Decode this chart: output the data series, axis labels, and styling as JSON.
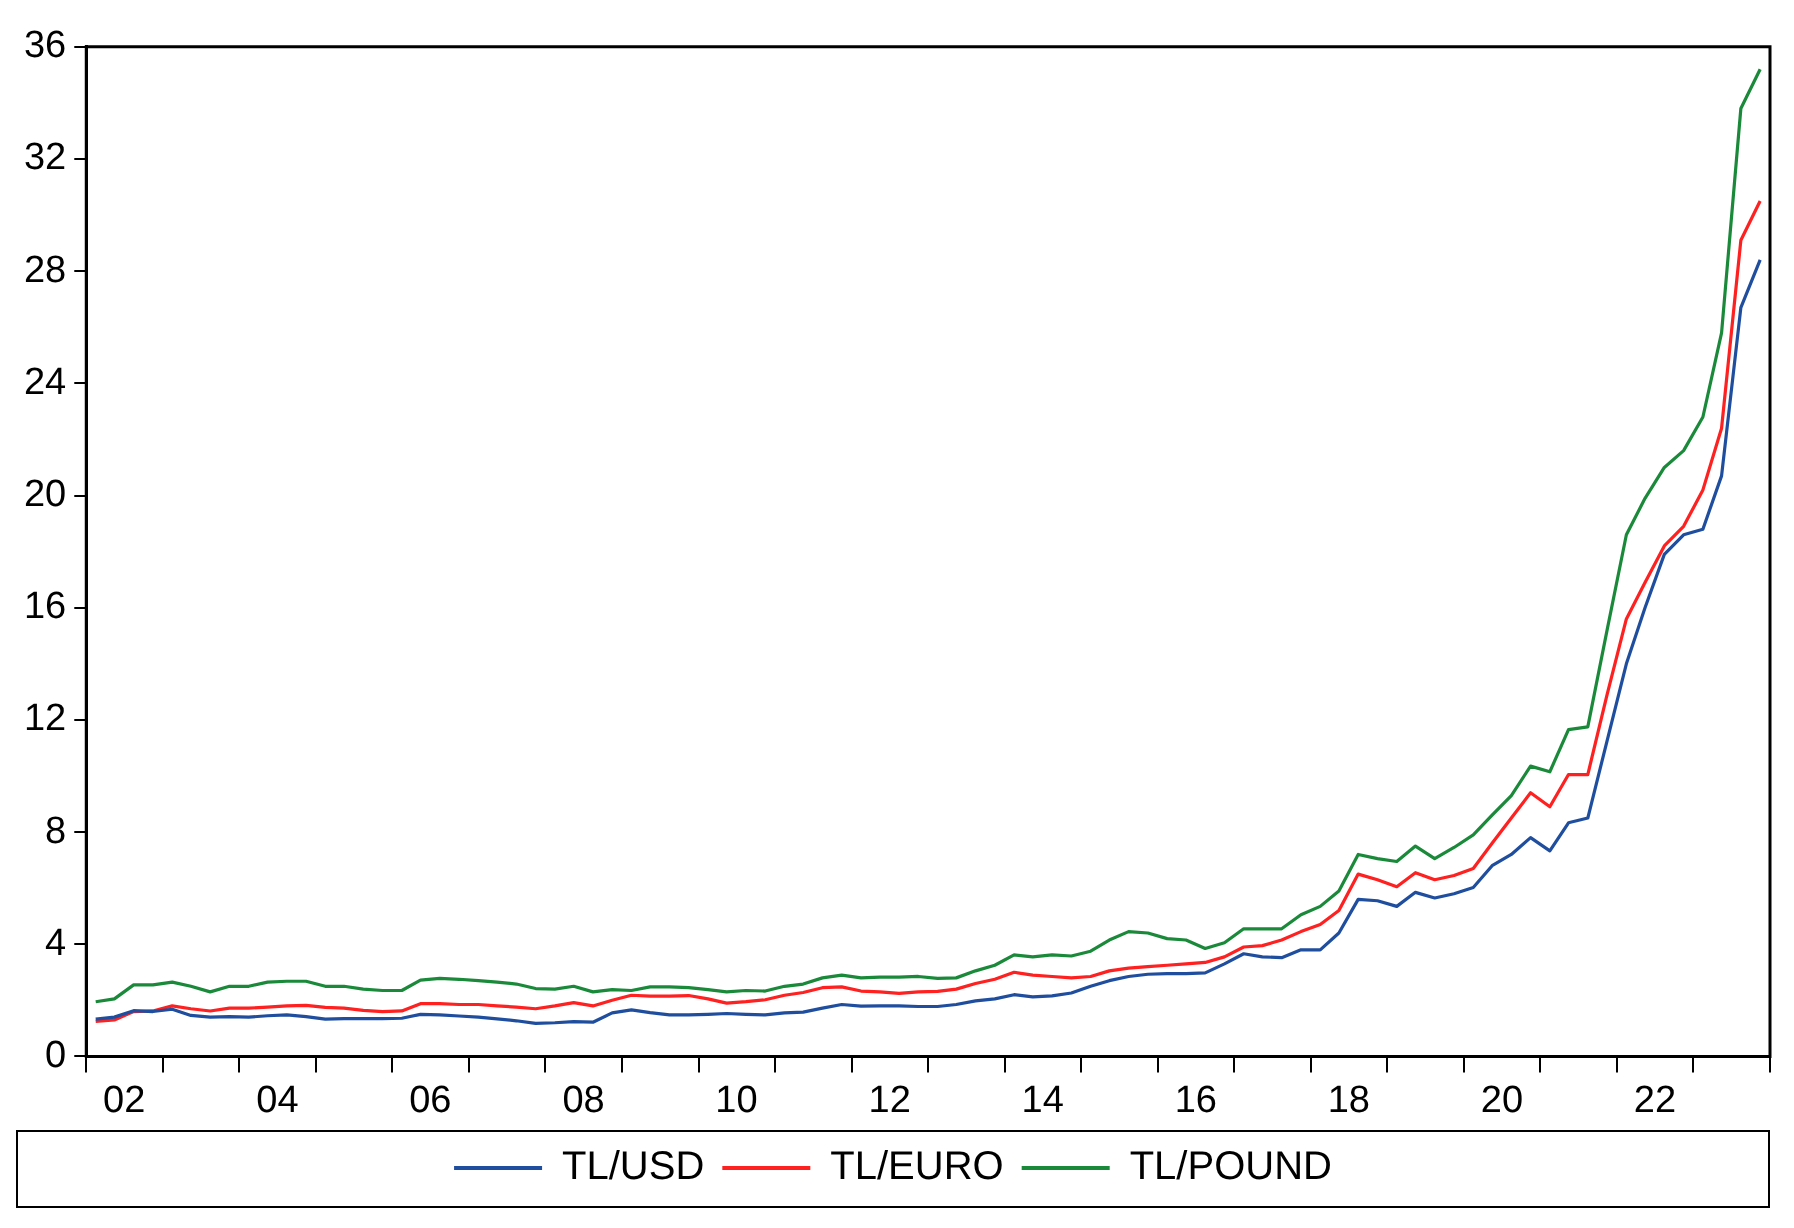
{
  "chart_data": {
    "type": "line",
    "x": [
      "2002-02-15",
      "2002-05-15",
      "2002-08-15",
      "2002-11-15",
      "2003-02-15",
      "2003-05-15",
      "2003-08-15",
      "2003-11-15",
      "2004-02-15",
      "2004-05-15",
      "2004-08-15",
      "2004-11-15",
      "2005-02-15",
      "2005-05-15",
      "2005-08-15",
      "2005-11-15",
      "2006-02-15",
      "2006-05-15",
      "2006-08-15",
      "2006-11-15",
      "2007-02-15",
      "2007-05-15",
      "2007-08-15",
      "2007-11-15",
      "2008-02-15",
      "2008-05-15",
      "2008-08-15",
      "2008-11-15",
      "2009-02-15",
      "2009-05-15",
      "2009-08-15",
      "2009-11-15",
      "2010-02-15",
      "2010-05-15",
      "2010-08-15",
      "2010-11-15",
      "2011-02-15",
      "2011-05-15",
      "2011-08-15",
      "2011-11-15",
      "2012-02-15",
      "2012-05-15",
      "2012-08-15",
      "2012-11-15",
      "2013-02-15",
      "2013-05-15",
      "2013-08-15",
      "2013-11-15",
      "2014-02-15",
      "2014-05-15",
      "2014-08-15",
      "2014-11-15",
      "2015-02-15",
      "2015-05-15",
      "2015-08-15",
      "2015-11-15",
      "2016-02-15",
      "2016-05-15",
      "2016-08-15",
      "2016-11-15",
      "2017-02-15",
      "2017-05-15",
      "2017-08-15",
      "2017-11-15",
      "2018-02-15",
      "2018-05-15",
      "2018-08-15",
      "2018-11-15",
      "2019-02-15",
      "2019-05-15",
      "2019-08-15",
      "2019-11-15",
      "2020-02-15",
      "2020-05-15",
      "2020-08-15",
      "2020-11-15",
      "2021-02-15",
      "2021-05-15",
      "2021-08-15",
      "2021-11-15",
      "2022-02-15",
      "2022-05-15",
      "2022-08-15",
      "2022-11-15",
      "2023-02-15",
      "2023-05-15",
      "2023-08-15",
      "2023-11-15"
    ],
    "series": [
      {
        "name": "TL/USD",
        "color": "#1f4e9e",
        "values": [
          1.33,
          1.4,
          1.63,
          1.6,
          1.68,
          1.46,
          1.4,
          1.42,
          1.4,
          1.45,
          1.48,
          1.42,
          1.33,
          1.35,
          1.35,
          1.35,
          1.36,
          1.5,
          1.48,
          1.44,
          1.4,
          1.34,
          1.27,
          1.18,
          1.2,
          1.24,
          1.22,
          1.55,
          1.66,
          1.56,
          1.48,
          1.48,
          1.5,
          1.53,
          1.5,
          1.48,
          1.55,
          1.58,
          1.72,
          1.85,
          1.79,
          1.8,
          1.8,
          1.78,
          1.78,
          1.85,
          1.98,
          2.05,
          2.2,
          2.12,
          2.16,
          2.26,
          2.5,
          2.7,
          2.85,
          2.93,
          2.95,
          2.95,
          2.98,
          3.3,
          3.66,
          3.55,
          3.52,
          3.8,
          3.8,
          4.4,
          5.6,
          5.55,
          5.35,
          5.85,
          5.65,
          5.8,
          6.02,
          6.8,
          7.2,
          7.8,
          7.33,
          8.33,
          8.5,
          11.25,
          14.0,
          16.0,
          17.9,
          18.6,
          18.8,
          20.7,
          26.7,
          28.4
        ]
      },
      {
        "name": "TL/EURO",
        "color": "#ff2020",
        "values": [
          1.25,
          1.3,
          1.6,
          1.62,
          1.8,
          1.7,
          1.62,
          1.72,
          1.72,
          1.76,
          1.8,
          1.82,
          1.75,
          1.72,
          1.64,
          1.6,
          1.62,
          1.88,
          1.88,
          1.85,
          1.85,
          1.8,
          1.76,
          1.7,
          1.8,
          1.92,
          1.8,
          2.0,
          2.18,
          2.15,
          2.15,
          2.17,
          2.05,
          1.9,
          1.95,
          2.02,
          2.18,
          2.28,
          2.45,
          2.48,
          2.33,
          2.3,
          2.25,
          2.3,
          2.32,
          2.4,
          2.6,
          2.75,
          3.0,
          2.9,
          2.85,
          2.8,
          2.85,
          3.05,
          3.15,
          3.2,
          3.25,
          3.3,
          3.35,
          3.55,
          3.9,
          3.95,
          4.15,
          4.45,
          4.7,
          5.2,
          6.5,
          6.3,
          6.05,
          6.55,
          6.3,
          6.45,
          6.7,
          7.6,
          8.5,
          9.4,
          8.9,
          10.05,
          10.05,
          12.9,
          15.6,
          16.9,
          18.2,
          18.9,
          20.2,
          22.4,
          29.1,
          30.5
        ]
      },
      {
        "name": "TL/POUND",
        "color": "#1a8a3a",
        "values": [
          1.95,
          2.05,
          2.55,
          2.55,
          2.65,
          2.5,
          2.3,
          2.5,
          2.5,
          2.65,
          2.68,
          2.68,
          2.5,
          2.5,
          2.4,
          2.35,
          2.35,
          2.72,
          2.78,
          2.75,
          2.7,
          2.65,
          2.58,
          2.42,
          2.4,
          2.5,
          2.3,
          2.38,
          2.35,
          2.48,
          2.48,
          2.45,
          2.38,
          2.3,
          2.35,
          2.33,
          2.5,
          2.58,
          2.8,
          2.9,
          2.8,
          2.83,
          2.83,
          2.85,
          2.78,
          2.8,
          3.05,
          3.25,
          3.62,
          3.55,
          3.62,
          3.58,
          3.75,
          4.15,
          4.45,
          4.4,
          4.2,
          4.15,
          3.85,
          4.05,
          4.55,
          4.55,
          4.55,
          5.05,
          5.35,
          5.9,
          7.2,
          7.05,
          6.95,
          7.5,
          7.05,
          7.45,
          7.9,
          8.6,
          9.3,
          10.35,
          10.15,
          11.65,
          11.75,
          15.2,
          18.6,
          19.9,
          21.0,
          21.6,
          22.8,
          25.8,
          33.8,
          35.2
        ]
      }
    ],
    "xlim": [
      "2002",
      "2024"
    ],
    "xticks": [
      {
        "value": "2002",
        "label": null
      },
      {
        "value": "2002-07",
        "label": "02"
      },
      {
        "value": "2003",
        "label": null
      },
      {
        "value": "2004",
        "label": null
      },
      {
        "value": "2004-07",
        "label": "04"
      },
      {
        "value": "2005",
        "label": null
      },
      {
        "value": "2006",
        "label": null
      },
      {
        "value": "2006-07",
        "label": "06"
      },
      {
        "value": "2007",
        "label": null
      },
      {
        "value": "2008",
        "label": null
      },
      {
        "value": "2008-07",
        "label": "08"
      },
      {
        "value": "2009",
        "label": null
      },
      {
        "value": "2010",
        "label": null
      },
      {
        "value": "2010-07",
        "label": "10"
      },
      {
        "value": "2011",
        "label": null
      },
      {
        "value": "2012",
        "label": null
      },
      {
        "value": "2012-07",
        "label": "12"
      },
      {
        "value": "2013",
        "label": null
      },
      {
        "value": "2014",
        "label": null
      },
      {
        "value": "2014-07",
        "label": "14"
      },
      {
        "value": "2015",
        "label": null
      },
      {
        "value": "2016",
        "label": null
      },
      {
        "value": "2016-07",
        "label": "16"
      },
      {
        "value": "2017",
        "label": null
      },
      {
        "value": "2018",
        "label": null
      },
      {
        "value": "2018-07",
        "label": "18"
      },
      {
        "value": "2019",
        "label": null
      },
      {
        "value": "2020",
        "label": null
      },
      {
        "value": "2020-07",
        "label": "20"
      },
      {
        "value": "2021",
        "label": null
      },
      {
        "value": "2022",
        "label": null
      },
      {
        "value": "2022-07",
        "label": "22"
      },
      {
        "value": "2023",
        "label": null
      },
      {
        "value": "2024",
        "label": null
      }
    ],
    "ylim": [
      0,
      36
    ],
    "yticks": [
      0,
      4,
      8,
      12,
      16,
      20,
      24,
      28,
      32,
      36
    ],
    "grid": false,
    "legend": "bottom",
    "marker": "none",
    "line_style": "solid"
  }
}
